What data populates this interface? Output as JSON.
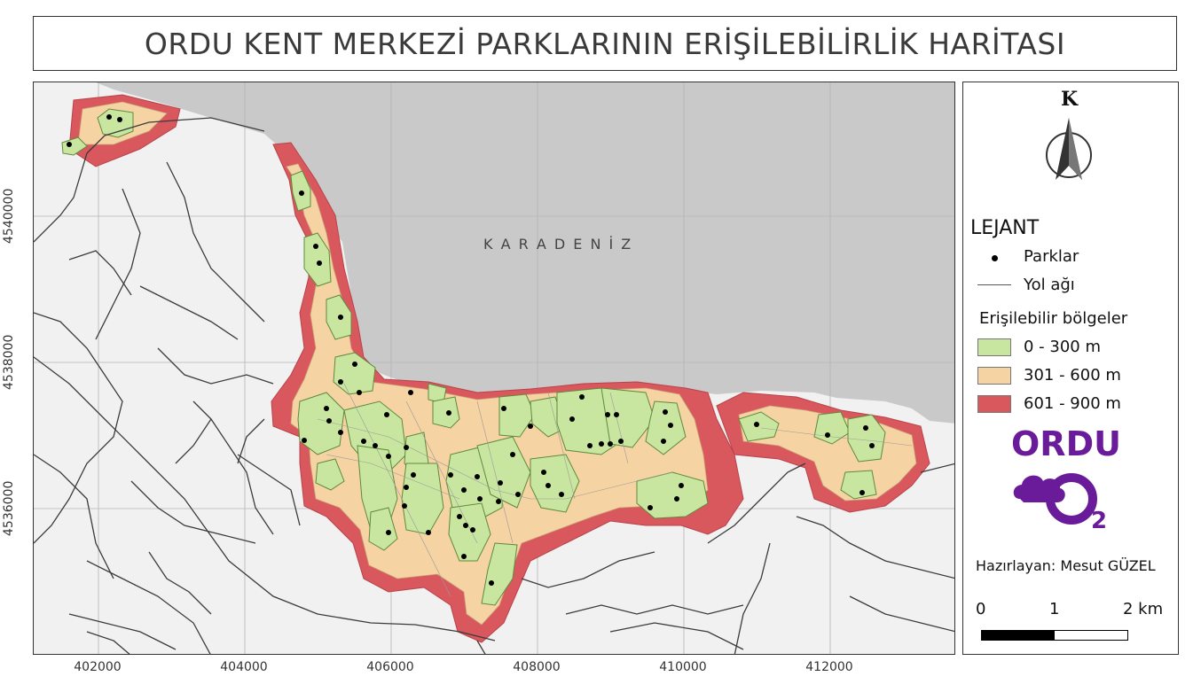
{
  "title": "ORDU KENT MERKEZİ PARKLARININ ERİŞİLEBİLİRLİK HARİTASI",
  "map": {
    "sea_label": "K A R A D E N İ Z",
    "x_ticks": [
      "402000",
      "404000",
      "406000",
      "408000",
      "410000",
      "412000"
    ],
    "y_ticks": [
      "4540000",
      "4538000",
      "4536000"
    ],
    "colors": {
      "sea": "#c9c9c9",
      "land": "#f1f1f1",
      "zone_0_300": "#c9e6a1",
      "zone_301_600": "#f6d3a3",
      "zone_601_900": "#d9585e",
      "roads": "#3b3b3b",
      "parks": "#000000"
    }
  },
  "north_arrow": {
    "label": "K"
  },
  "legend": {
    "title": "LEJANT",
    "parks_label": "Parklar",
    "roads_label": "Yol ağı",
    "zones_title": "Erişilebilir bölgeler",
    "zones": [
      {
        "label": "0 - 300 m",
        "color": "#c9e6a1"
      },
      {
        "label": "301 - 600 m",
        "color": "#f6d3a3"
      },
      {
        "label": "601 - 900 m",
        "color": "#d9585e"
      }
    ]
  },
  "logo": {
    "text_top": "ORDU",
    "subscript": "2",
    "color": "#6a1b9a"
  },
  "author": "Hazırlayan: Mesut GÜZEL",
  "scale_bar": {
    "labels": [
      "0",
      "1",
      "2 km"
    ]
  }
}
